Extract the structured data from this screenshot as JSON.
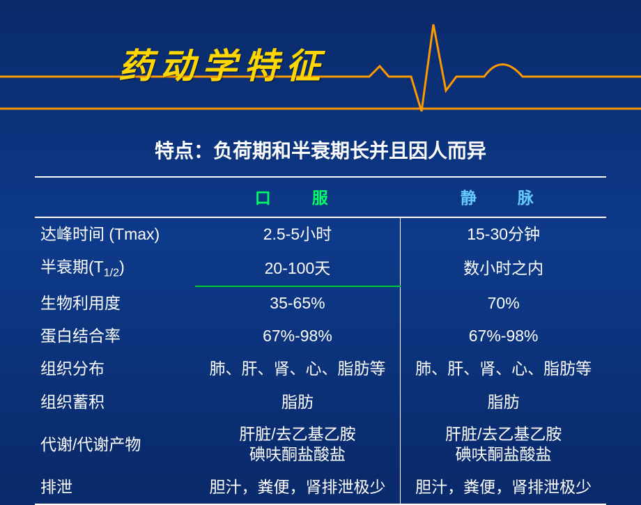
{
  "colors": {
    "background_top": "#0a2a6b",
    "background_mid": "#0d3a8a",
    "title_color": "#ffd700",
    "text_color": "#ffffff",
    "oral_header_color": "#00ff66",
    "iv_header_color": "#66ccff",
    "highlight_underline": "#00cc33",
    "ecg_line_color": "#ff9900",
    "border_color": "#ffffff"
  },
  "title": "药动学特征",
  "subtitle": "特点：负荷期和半衰期长并且因人而异",
  "table": {
    "columns": [
      {
        "label": "",
        "width": "28%"
      },
      {
        "label": "口　服",
        "width": "36%",
        "class": "col-oral"
      },
      {
        "label": "静　脉",
        "width": "36%",
        "class": "col-iv"
      }
    ],
    "rows": [
      {
        "label": "达峰时间 (Tmax)",
        "oral": "2.5-5小时",
        "iv": "15-30分钟"
      },
      {
        "label_html": "半衰期(T<span class='sub'>1/2</span>)",
        "oral": "20-100天",
        "iv": "数小时之内",
        "highlight_oral": true
      },
      {
        "label": "生物利用度",
        "oral": "35-65%",
        "iv": "70%"
      },
      {
        "label": "蛋白结合率",
        "oral": "67%-98%",
        "iv": "67%-98%"
      },
      {
        "label": "组织分布",
        "oral": "肺、肝、肾、心、脂肪等",
        "iv": "肺、肝、肾、心、脂肪等"
      },
      {
        "label": "组织蓄积",
        "oral": "脂肪",
        "iv": "脂肪"
      },
      {
        "label": "代谢/代谢产物",
        "oral_html": "肝脏/去乙基乙胺<br>碘呋酮盐酸盐",
        "iv_html": "肝脏/去乙基乙胺<br>碘呋酮盐酸盐",
        "metab": true
      },
      {
        "label": "排泄",
        "oral": "胆汁，粪便，肾排泄极少",
        "iv": "胆汁，粪便，肾排泄极少"
      }
    ]
  }
}
